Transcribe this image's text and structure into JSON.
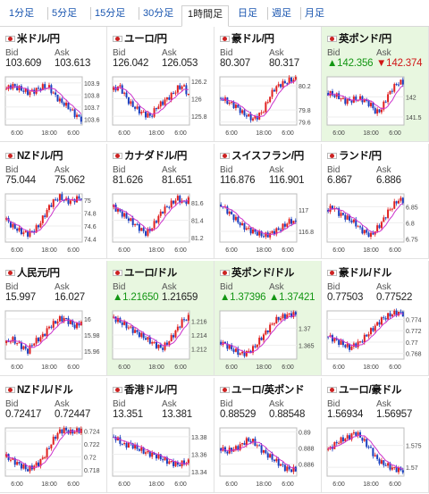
{
  "tabs": [
    {
      "label": "1分足",
      "active": false
    },
    {
      "label": "5分足",
      "active": false
    },
    {
      "label": "15分足",
      "active": false
    },
    {
      "label": "30分足",
      "active": false
    },
    {
      "label": "1時間足",
      "active": true
    },
    {
      "label": "日足",
      "active": false
    },
    {
      "label": "週足",
      "active": false
    },
    {
      "label": "月足",
      "active": false
    }
  ],
  "labels": {
    "bid": "Bid",
    "ask": "Ask"
  },
  "colors": {
    "up_candle": "#e02020",
    "down_candle": "#1a3fbf",
    "ma": "#cc33cc",
    "green_text": "#139613",
    "red_text": "#d01616",
    "highlight_bg": "#e8f7e0"
  },
  "pairs": [
    {
      "name": "米ドル/円",
      "bid": "103.609",
      "ask": "103.613",
      "highlight": false,
      "chart_data": {
        "type": "candlestick",
        "x_ticks": [
          "6:00",
          "18:00",
          "6:00"
        ],
        "y_ticks": [
          "103.9",
          "103.8",
          "103.7",
          "103.6"
        ],
        "y_range": [
          103.55,
          103.95
        ],
        "trend": [
          103.85,
          103.88,
          103.86,
          103.84,
          103.82,
          103.83,
          103.85,
          103.87,
          103.86,
          103.8,
          103.75,
          103.72,
          103.68,
          103.63,
          103.6
        ]
      }
    },
    {
      "name": "ユーロ/円",
      "bid": "126.042",
      "ask": "126.053",
      "highlight": false,
      "chart_data": {
        "type": "candlestick",
        "x_ticks": [
          "6:00",
          "18:00",
          "6:00"
        ],
        "y_ticks": [
          "126.2",
          "126",
          "125.8"
        ],
        "y_range": [
          125.7,
          126.25
        ],
        "trend": [
          126.1,
          126.15,
          126.05,
          125.95,
          125.9,
          125.85,
          125.82,
          125.8,
          125.9,
          125.95,
          126.0,
          126.05,
          126.12,
          126.15,
          126.04
        ]
      }
    },
    {
      "name": "豪ドル/円",
      "bid": "80.307",
      "ask": "80.317",
      "highlight": false,
      "chart_data": {
        "type": "candlestick",
        "x_ticks": [
          "6:00",
          "18:00",
          "6:00"
        ],
        "y_ticks": [
          "80.2",
          "79.8",
          "79.6"
        ],
        "y_range": [
          79.55,
          80.35
        ],
        "trend": [
          80.0,
          79.95,
          79.9,
          79.85,
          79.75,
          79.7,
          79.65,
          79.7,
          79.8,
          80.0,
          80.15,
          80.22,
          80.25,
          80.3,
          80.31
        ]
      }
    },
    {
      "name": "英ポンド/円",
      "bid": "▲142.356",
      "ask": "▼142.374",
      "highlight": true,
      "chart_data": {
        "type": "candlestick",
        "x_ticks": [
          "6:00",
          "18:00",
          "6:00"
        ],
        "y_ticks": [
          "142",
          "141.5"
        ],
        "y_range": [
          141.3,
          142.5
        ],
        "trend": [
          142.1,
          142.05,
          142.0,
          141.9,
          141.9,
          141.95,
          141.95,
          141.9,
          141.8,
          141.6,
          141.7,
          142.0,
          142.2,
          142.35,
          142.36
        ]
      }
    },
    {
      "name": "NZドル/円",
      "bid": "75.044",
      "ask": "75.062",
      "highlight": false,
      "chart_data": {
        "type": "candlestick",
        "x_ticks": [
          "6:00",
          "18:00",
          "6:00"
        ],
        "y_ticks": [
          "75",
          "74.8",
          "74.6",
          "74.4"
        ],
        "y_range": [
          74.35,
          75.1
        ],
        "trend": [
          74.7,
          74.6,
          74.55,
          74.5,
          74.48,
          74.52,
          74.6,
          74.75,
          74.9,
          75.0,
          75.05,
          75.0,
          74.98,
          75.02,
          75.04
        ]
      }
    },
    {
      "name": "カナダドル/円",
      "bid": "81.626",
      "ask": "81.651",
      "highlight": false,
      "chart_data": {
        "type": "candlestick",
        "x_ticks": [
          "6:00",
          "18:00",
          "6:00"
        ],
        "y_ticks": [
          "81.6",
          "81.4",
          "81.2"
        ],
        "y_range": [
          81.15,
          81.7
        ],
        "trend": [
          81.55,
          81.5,
          81.45,
          81.4,
          81.35,
          81.3,
          81.25,
          81.3,
          81.4,
          81.5,
          81.55,
          81.6,
          81.65,
          81.6,
          81.63
        ]
      }
    },
    {
      "name": "スイスフラン/円",
      "bid": "116.876",
      "ask": "116.901",
      "highlight": false,
      "chart_data": {
        "type": "candlestick",
        "x_ticks": [
          "6:00",
          "18:00",
          "6:00"
        ],
        "y_ticks": [
          "117",
          "116.8"
        ],
        "y_range": [
          116.7,
          117.15
        ],
        "trend": [
          117.05,
          117.0,
          116.95,
          116.9,
          116.85,
          116.82,
          116.8,
          116.78,
          116.76,
          116.77,
          116.8,
          116.82,
          116.86,
          116.9,
          116.88
        ]
      }
    },
    {
      "name": "ランド/円",
      "bid": "6.867",
      "ask": "6.886",
      "highlight": false,
      "chart_data": {
        "type": "candlestick",
        "x_ticks": [
          "6:00",
          "18:00",
          "6:00"
        ],
        "y_ticks": [
          "6.85",
          "6.8",
          "6.75"
        ],
        "y_range": [
          6.74,
          6.89
        ],
        "trend": [
          6.84,
          6.85,
          6.83,
          6.82,
          6.81,
          6.8,
          6.78,
          6.77,
          6.76,
          6.78,
          6.8,
          6.83,
          6.85,
          6.87,
          6.87
        ]
      }
    },
    {
      "name": "人民元/円",
      "bid": "15.997",
      "ask": "16.027",
      "highlight": false,
      "chart_data": {
        "type": "candlestick",
        "x_ticks": [
          "6:00",
          "18:00",
          "6:00"
        ],
        "y_ticks": [
          "16",
          "15.98",
          "15.96"
        ],
        "y_range": [
          15.95,
          16.01
        ],
        "trend": [
          15.97,
          15.975,
          15.97,
          15.965,
          15.96,
          15.97,
          15.975,
          15.98,
          15.99,
          15.995,
          16.0,
          16.0,
          15.995,
          15.99,
          15.997
        ]
      }
    },
    {
      "name": "ユーロ/ドル",
      "bid": "▲1.21650",
      "ask": "1.21659",
      "highlight": true,
      "chart_data": {
        "type": "candlestick",
        "x_ticks": [
          "6:00",
          "18:00",
          "6:00"
        ],
        "y_ticks": [
          "1.216",
          "1.214",
          "1.212"
        ],
        "y_range": [
          1.2105,
          1.2175
        ],
        "trend": [
          1.2165,
          1.216,
          1.2155,
          1.215,
          1.2145,
          1.214,
          1.2135,
          1.213,
          1.2125,
          1.212,
          1.2128,
          1.2138,
          1.215,
          1.2162,
          1.2165
        ]
      }
    },
    {
      "name": "英ポンド/ドル",
      "bid": "▲1.37396",
      "ask": "▲1.37421",
      "highlight": true,
      "chart_data": {
        "type": "candlestick",
        "x_ticks": [
          "6:00",
          "18:00",
          "6:00"
        ],
        "y_ticks": [
          "1.37",
          "1.365"
        ],
        "y_range": [
          1.361,
          1.375
        ],
        "trend": [
          1.366,
          1.365,
          1.364,
          1.363,
          1.3625,
          1.363,
          1.364,
          1.366,
          1.368,
          1.37,
          1.372,
          1.373,
          1.3735,
          1.374,
          1.374
        ]
      }
    },
    {
      "name": "豪ドル/ドル",
      "bid": "0.77503",
      "ask": "0.77522",
      "highlight": false,
      "chart_data": {
        "type": "candlestick",
        "x_ticks": [
          "6:00",
          "18:00",
          "6:00"
        ],
        "y_ticks": [
          "0.774",
          "0.772",
          "0.77",
          "0.768"
        ],
        "y_range": [
          0.767,
          0.7755
        ],
        "trend": [
          0.771,
          0.7705,
          0.77,
          0.7695,
          0.769,
          0.7695,
          0.77,
          0.771,
          0.772,
          0.773,
          0.774,
          0.7745,
          0.775,
          0.7752,
          0.775
        ]
      }
    },
    {
      "name": "NZドル/ドル",
      "bid": "0.72417",
      "ask": "0.72447",
      "highlight": false,
      "chart_data": {
        "type": "candlestick",
        "x_ticks": [
          "6:00",
          "18:00",
          "6:00"
        ],
        "y_ticks": [
          "0.724",
          "0.722",
          "0.72",
          "0.718"
        ],
        "y_range": [
          0.717,
          0.7245
        ],
        "trend": [
          0.72,
          0.7195,
          0.719,
          0.7185,
          0.718,
          0.7185,
          0.719,
          0.72,
          0.7215,
          0.723,
          0.724,
          0.7242,
          0.7238,
          0.724,
          0.7242
        ]
      }
    },
    {
      "name": "香港ドル/円",
      "bid": "13.351",
      "ask": "13.381",
      "highlight": false,
      "chart_data": {
        "type": "candlestick",
        "x_ticks": [
          "6:00",
          "18:00",
          "6:00"
        ],
        "y_ticks": [
          "13.38",
          "13.36",
          "13.34"
        ],
        "y_range": [
          13.335,
          13.39
        ],
        "trend": [
          13.38,
          13.375,
          13.37,
          13.372,
          13.368,
          13.365,
          13.362,
          13.36,
          13.358,
          13.355,
          13.352,
          13.35,
          13.348,
          13.35,
          13.351
        ]
      }
    },
    {
      "name": "ユーロ/英ポンド",
      "bid": "0.88529",
      "ask": "0.88548",
      "highlight": false,
      "chart_data": {
        "type": "candlestick",
        "x_ticks": [
          "6:00",
          "18:00",
          "6:00"
        ],
        "y_ticks": [
          "0.89",
          "0.888",
          "0.886"
        ],
        "y_range": [
          0.8845,
          0.8905
        ],
        "trend": [
          0.888,
          0.8875,
          0.8878,
          0.888,
          0.8885,
          0.889,
          0.8888,
          0.8882,
          0.8875,
          0.887,
          0.8865,
          0.886,
          0.8855,
          0.8853,
          0.8853
        ]
      }
    },
    {
      "name": "ユーロ/豪ドル",
      "bid": "1.56934",
      "ask": "1.56957",
      "highlight": false,
      "chart_data": {
        "type": "candlestick",
        "x_ticks": [
          "6:00",
          "18:00",
          "6:00"
        ],
        "y_ticks": [
          "1.575",
          "1.57"
        ],
        "y_range": [
          1.568,
          1.579
        ],
        "trend": [
          1.574,
          1.575,
          1.576,
          1.5765,
          1.577,
          1.578,
          1.577,
          1.5755,
          1.574,
          1.572,
          1.571,
          1.5705,
          1.5698,
          1.5695,
          1.5693
        ]
      }
    }
  ]
}
